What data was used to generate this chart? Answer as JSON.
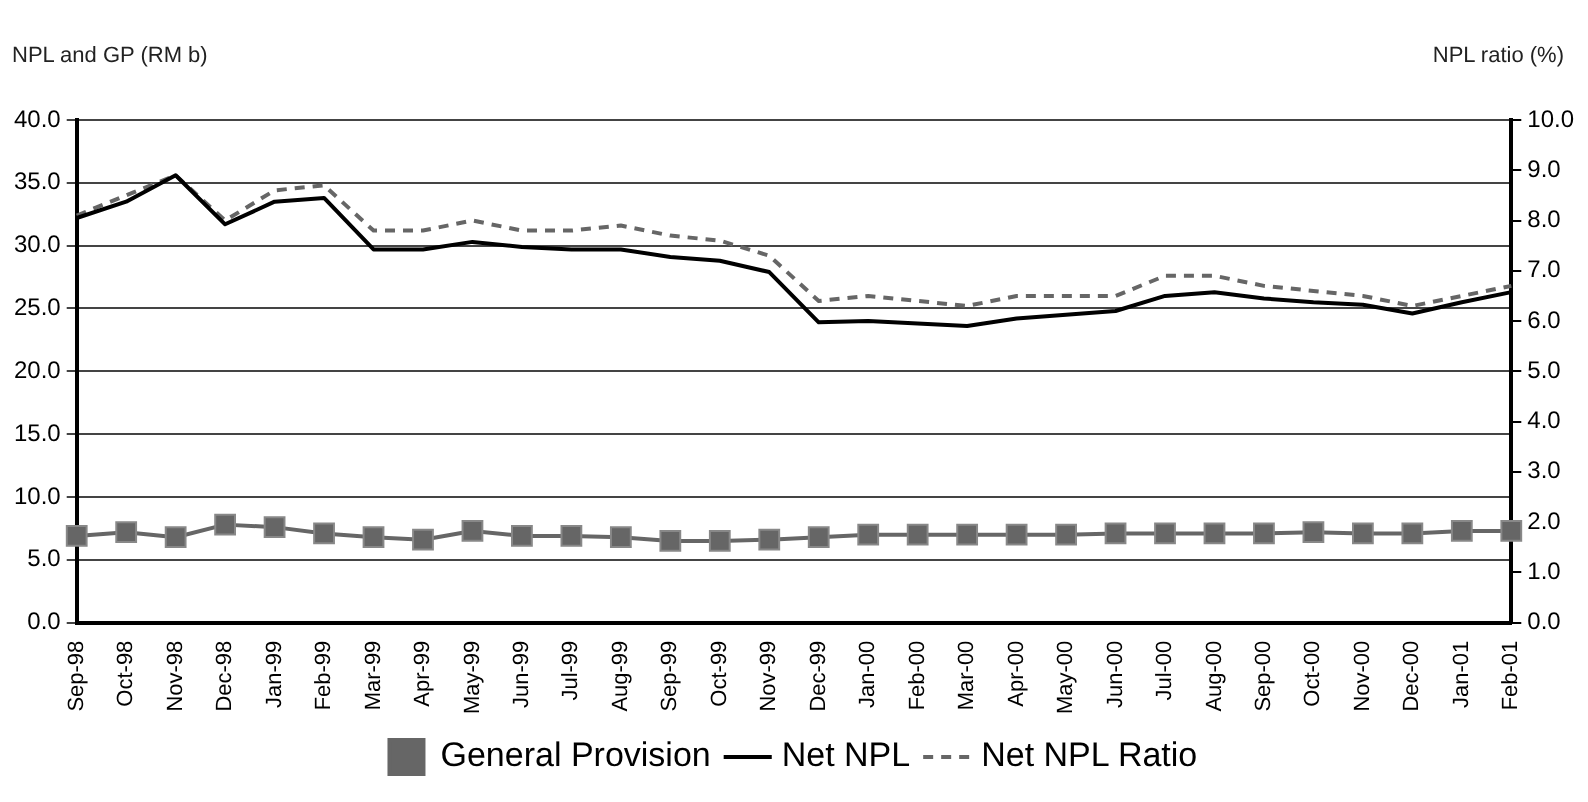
{
  "chart_data": {
    "type": "line",
    "ylabel": "NPL and GP (RM b)",
    "y2label": "NPL ratio (%)",
    "categories": [
      "Sep-98",
      "Oct-98",
      "Nov-98",
      "Dec-98",
      "Jan-99",
      "Feb-99",
      "Mar-99",
      "Apr-99",
      "May-99",
      "Jun-99",
      "Jul-99",
      "Aug-99",
      "Sep-99",
      "Oct-99",
      "Nov-99",
      "Dec-99",
      "Jan-00",
      "Feb-00",
      "Mar-00",
      "Apr-00",
      "May-00",
      "Jun-00",
      "Jul-00",
      "Aug-00",
      "Sep-00",
      "Oct-00",
      "Nov-00",
      "Dec-00",
      "Jan-01",
      "Feb-01"
    ],
    "series": [
      {
        "name": "General Provision",
        "color": "#666666",
        "marker": "square",
        "line_style": "solid",
        "values": [
          6.9,
          7.2,
          6.8,
          7.8,
          7.6,
          7.1,
          6.8,
          6.6,
          7.3,
          6.9,
          6.9,
          6.8,
          6.5,
          6.5,
          6.6,
          6.8,
          7.0,
          7.0,
          7.0,
          7.0,
          7.0,
          7.1,
          7.1,
          7.1,
          7.1,
          7.2,
          7.1,
          7.1,
          7.3,
          7.3
        ]
      },
      {
        "name": "Net NPL",
        "color": "#000000",
        "marker": "none",
        "line_style": "solid",
        "values": [
          32.2,
          33.5,
          35.6,
          31.7,
          33.5,
          33.8,
          29.7,
          29.7,
          30.3,
          29.9,
          29.7,
          29.7,
          29.1,
          28.8,
          27.9,
          23.9,
          24.0,
          23.8,
          23.6,
          24.2,
          24.5,
          24.8,
          26.0,
          26.3,
          25.8,
          25.5,
          25.3,
          24.6,
          25.5,
          26.3
        ]
      },
      {
        "name": "Net NPL Ratio",
        "color": "#666666",
        "marker": "none",
        "line_style": "dashed",
        "axis": "y2",
        "values": [
          8.1,
          8.5,
          8.9,
          8.0,
          8.6,
          8.7,
          7.8,
          7.8,
          8.0,
          7.8,
          7.8,
          7.9,
          7.7,
          7.6,
          7.3,
          6.4,
          6.5,
          6.4,
          6.3,
          6.5,
          6.5,
          6.5,
          6.9,
          6.9,
          6.7,
          6.6,
          6.5,
          6.3,
          6.5,
          6.7
        ]
      }
    ],
    "ylim": [
      0,
      40
    ],
    "yticks": [
      {
        "value": 0,
        "label": "0.0"
      },
      {
        "value": 5,
        "label": "5.0"
      },
      {
        "value": 10,
        "label": "10.0"
      },
      {
        "value": 15,
        "label": "15.0"
      },
      {
        "value": 20,
        "label": "20.0"
      },
      {
        "value": 25,
        "label": "25.0"
      },
      {
        "value": 30,
        "label": "30.0"
      },
      {
        "value": 35,
        "label": "35.0"
      },
      {
        "value": 40,
        "label": "40.0"
      }
    ],
    "y2lim": [
      0,
      10
    ],
    "y2ticks": [
      {
        "value": 0,
        "label": "0.0"
      },
      {
        "value": 1,
        "label": "1.0"
      },
      {
        "value": 2,
        "label": "2.0"
      },
      {
        "value": 3,
        "label": "3.0"
      },
      {
        "value": 4,
        "label": "4.0"
      },
      {
        "value": 5,
        "label": "5.0"
      },
      {
        "value": 6,
        "label": "6.0"
      },
      {
        "value": 7,
        "label": "7.0"
      },
      {
        "value": 8,
        "label": "8.0"
      },
      {
        "value": 9,
        "label": "9.0"
      },
      {
        "value": 10,
        "label": "10.0"
      }
    ],
    "grid": "y",
    "legend": "bottom"
  }
}
